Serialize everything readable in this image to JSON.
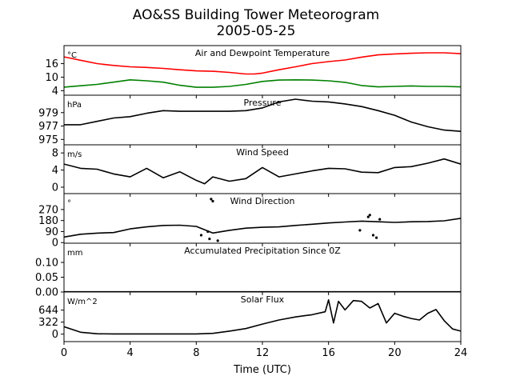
{
  "figure": {
    "title_line1": "AO&SS Building Tower Meteorogram",
    "title_line2": "2005-05-25",
    "xlabel": "Time (UTC)",
    "xticks": [
      "0",
      "4",
      "8",
      "12",
      "16",
      "20",
      "24"
    ]
  },
  "chart_data": [
    {
      "type": "line",
      "title": "Air and Dewpoint Temperature",
      "unit": "°C",
      "xlim": [
        0,
        24
      ],
      "ylim": [
        2,
        24
      ],
      "yticks": [
        "4",
        "10",
        "16"
      ],
      "series": [
        {
          "color": "#ff0000",
          "x": [
            0,
            1,
            2,
            3,
            4,
            5,
            6,
            7,
            8,
            9,
            10,
            11,
            11.5,
            12,
            13,
            14,
            15,
            16,
            17,
            18,
            19,
            20,
            21,
            22,
            23,
            24
          ],
          "y": [
            19,
            17.5,
            16,
            15.2,
            14.6,
            14.3,
            13.9,
            13.3,
            12.8,
            12.6,
            12.1,
            11.4,
            11.4,
            11.8,
            13.3,
            14.6,
            16,
            16.9,
            17.6,
            18.9,
            19.9,
            20.3,
            20.6,
            20.8,
            20.8,
            20.4
          ]
        },
        {
          "color": "#008000",
          "x": [
            0,
            1,
            2,
            3,
            4,
            5,
            6,
            7,
            8,
            9,
            10,
            11,
            12,
            13,
            14,
            15,
            16,
            17,
            18,
            19,
            20,
            21,
            22,
            23,
            24
          ],
          "y": [
            5.6,
            6.2,
            6.8,
            7.8,
            8.8,
            8.4,
            7.8,
            6.4,
            5.5,
            5.5,
            5.9,
            6.8,
            8.1,
            8.7,
            8.8,
            8.7,
            8.4,
            7.7,
            6.3,
            5.7,
            5.9,
            6.1,
            5.9,
            5.9,
            5.7
          ]
        }
      ]
    },
    {
      "type": "line",
      "title": "Pressure",
      "unit": "hPa",
      "xlim": [
        0,
        24
      ],
      "ylim": [
        974.2,
        981.6
      ],
      "yticks": [
        "975",
        "977",
        "979"
      ],
      "series": [
        {
          "color": "#000000",
          "x": [
            0,
            1,
            2,
            3,
            4,
            5,
            6,
            7,
            8,
            9,
            10,
            11,
            12,
            13,
            14,
            15,
            16,
            17,
            18,
            19,
            20,
            21,
            22,
            23,
            24
          ],
          "y": [
            977.2,
            977.2,
            977.7,
            978.2,
            978.4,
            978.9,
            979.3,
            979.2,
            979.2,
            979.2,
            979.2,
            979.3,
            979.7,
            980.6,
            981.0,
            980.7,
            980.6,
            980.3,
            979.9,
            979.3,
            978.6,
            977.6,
            976.9,
            976.4,
            976.2
          ]
        }
      ]
    },
    {
      "type": "line",
      "title": "Wind Speed",
      "unit": "m/s",
      "xlim": [
        0,
        24
      ],
      "ylim": [
        -1.5,
        9.9
      ],
      "yticks": [
        "0",
        "4",
        "8"
      ],
      "series": [
        {
          "color": "#000000",
          "x": [
            0,
            1,
            2,
            3,
            4,
            5,
            6,
            7,
            8,
            8.5,
            9,
            10,
            11,
            12,
            13,
            14,
            15,
            16,
            17,
            18,
            19,
            20,
            21,
            22,
            23,
            24
          ],
          "y": [
            5.4,
            4.4,
            4.2,
            3.1,
            2.4,
            4.4,
            2.2,
            3.6,
            1.6,
            0.8,
            2.4,
            1.4,
            2.0,
            4.6,
            2.4,
            3.1,
            3.8,
            4.4,
            4.3,
            3.5,
            3.4,
            4.6,
            4.8,
            5.6,
            6.6,
            5.4
          ]
        }
      ]
    },
    {
      "type": "line",
      "title": "Wind Direction",
      "unit": "°",
      "xlim": [
        0,
        24
      ],
      "ylim": [
        -5,
        400
      ],
      "yticks": [
        "0",
        "90",
        "180",
        "270"
      ],
      "series": [
        {
          "color": "#000000",
          "x": [
            0,
            1,
            2,
            3,
            4,
            5,
            6,
            7,
            8,
            9,
            10,
            11,
            12,
            13,
            14,
            15,
            16,
            17,
            18,
            19,
            20,
            21,
            22,
            23,
            24
          ],
          "y": [
            45,
            68,
            77,
            82,
            112,
            128,
            140,
            142,
            132,
            78,
            100,
            118,
            125,
            128,
            140,
            150,
            160,
            168,
            175,
            170,
            165,
            170,
            172,
            178,
            198
          ]
        },
        {
          "color": "#000000",
          "x": [
            8.9,
            9.0,
            8.7,
            8.3,
            8.8,
            9.3,
            18.7,
            18.9,
            18.5,
            19.1,
            17.9,
            18.4
          ],
          "y": [
            355,
            338,
            90,
            60,
            30,
            15,
            60,
            40,
            225,
            190,
            100,
            210
          ]
        }
      ]
    },
    {
      "type": "line",
      "title": "Accumulated Precipitation Since 0Z",
      "unit": "mm",
      "xlim": [
        0,
        24
      ],
      "ylim": [
        0,
        0.165
      ],
      "yticks": [
        "0.00",
        "0.05",
        "0.10"
      ],
      "series": [
        {
          "color": "#000000",
          "x": [
            0,
            24
          ],
          "y": [
            0,
            0
          ]
        }
      ]
    },
    {
      "type": "line",
      "title": "Solar Flux",
      "unit": "W/m^2",
      "xlim": [
        0,
        24
      ],
      "ylim": [
        -200,
        1130
      ],
      "yticks": [
        "0",
        "322",
        "644"
      ],
      "series": [
        {
          "color": "#000000",
          "x": [
            0,
            1,
            2,
            3,
            4,
            5,
            6,
            7,
            8,
            9,
            10,
            11,
            12,
            13,
            14,
            15,
            15.8,
            16,
            16.3,
            16.6,
            17,
            17.5,
            18,
            18.5,
            19,
            19.5,
            20,
            20.5,
            21,
            21.5,
            22,
            22.5,
            23,
            23.5,
            24
          ],
          "y": [
            200,
            50,
            10,
            5,
            5,
            5,
            5,
            5,
            5,
            20,
            80,
            150,
            270,
            380,
            460,
            520,
            600,
            920,
            300,
            880,
            650,
            900,
            880,
            700,
            820,
            300,
            560,
            480,
            420,
            380,
            560,
            660,
            360,
            140,
            80
          ]
        }
      ]
    }
  ]
}
